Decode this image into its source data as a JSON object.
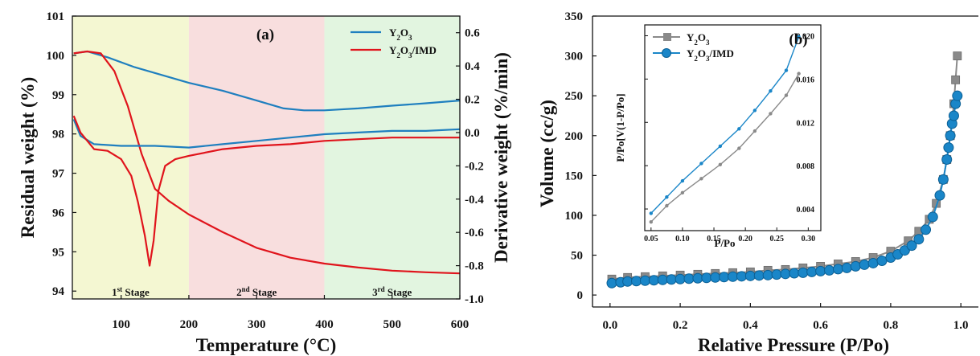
{
  "colors": {
    "y2o3_a": "#1f7fbf",
    "y2o3imd_a": "#e0141c",
    "stage1": "#f4f7d2",
    "stage2": "#f8dede",
    "stage3": "#e2f5e0",
    "y2o3_b": "#8a8a8a",
    "y2o3imd_b": "#1a86c8"
  },
  "chart_data": [
    {
      "type": "line",
      "panel_label": "(a)",
      "xlabel": "Temperature (°C)",
      "ylabel": "Residual weight (%)",
      "y2label": "Derivative weight (%/min)",
      "xlim": [
        28,
        600
      ],
      "ylim": [
        93.8,
        101
      ],
      "y2lim": [
        -1.0,
        0.7
      ],
      "x_ticks": [
        100,
        200,
        300,
        400,
        500,
        600
      ],
      "y_ticks": [
        94,
        95,
        96,
        97,
        98,
        99,
        100,
        101
      ],
      "y2_ticks": [
        -1.0,
        -0.8,
        -0.6,
        -0.4,
        -0.2,
        0.0,
        0.2,
        0.4,
        0.6
      ],
      "stages": [
        {
          "label_num": "1",
          "label_sup": "st",
          "label_text": " Stage",
          "from": 28,
          "to": 200
        },
        {
          "label_num": "2",
          "label_sup": "nd",
          "label_text": " Stage",
          "from": 200,
          "to": 400
        },
        {
          "label_num": "3",
          "label_sup": "rd",
          "label_text": " Stage",
          "from": 400,
          "to": 600
        }
      ],
      "legend": [
        {
          "label": "Y",
          "sub1": "2",
          "mid": "O",
          "sub2": "3",
          "suffix": ""
        },
        {
          "label": "Y",
          "sub1": "2",
          "mid": "O",
          "sub2": "3",
          "suffix": "/IMD"
        }
      ],
      "series": [
        {
          "axis": "left",
          "color_key": "y2o3_a",
          "x": [
            30,
            50,
            80,
            120,
            160,
            200,
            250,
            300,
            340,
            370,
            400,
            450,
            500,
            550,
            600
          ],
          "y": [
            100.05,
            100.1,
            99.95,
            99.7,
            99.5,
            99.3,
            99.1,
            98.85,
            98.65,
            98.6,
            98.6,
            98.65,
            98.72,
            98.78,
            98.85
          ]
        },
        {
          "axis": "left",
          "color_key": "y2o3imd_a",
          "x": [
            30,
            50,
            70,
            90,
            110,
            130,
            150,
            170,
            200,
            250,
            300,
            350,
            400,
            450,
            500,
            550,
            600
          ],
          "y": [
            100.05,
            100.1,
            100.05,
            99.6,
            98.7,
            97.5,
            96.6,
            96.3,
            95.95,
            95.5,
            95.1,
            94.85,
            94.7,
            94.6,
            94.52,
            94.48,
            94.45
          ]
        },
        {
          "axis": "right",
          "color_key": "y2o3_a",
          "x": [
            30,
            40,
            60,
            100,
            150,
            200,
            250,
            300,
            350,
            400,
            450,
            500,
            550,
            600
          ],
          "y": [
            0.08,
            -0.02,
            -0.07,
            -0.08,
            -0.08,
            -0.09,
            -0.07,
            -0.05,
            -0.03,
            -0.01,
            0.0,
            0.01,
            0.01,
            0.02
          ]
        },
        {
          "axis": "right",
          "color_key": "y2o3imd_a",
          "x": [
            30,
            40,
            60,
            80,
            100,
            115,
            125,
            135,
            142,
            148,
            155,
            165,
            180,
            200,
            250,
            300,
            350,
            400,
            450,
            500,
            550,
            600
          ],
          "y": [
            0.1,
            0.0,
            -0.1,
            -0.11,
            -0.16,
            -0.26,
            -0.42,
            -0.62,
            -0.8,
            -0.65,
            -0.35,
            -0.2,
            -0.16,
            -0.14,
            -0.1,
            -0.08,
            -0.07,
            -0.05,
            -0.04,
            -0.03,
            -0.03,
            -0.03
          ]
        }
      ]
    },
    {
      "type": "line",
      "panel_label": "(b)",
      "xlabel": "Relative Pressure (P/Po)",
      "ylabel": "Volume (cc/g)",
      "xlim": [
        -0.05,
        1.05
      ],
      "ylim": [
        -15,
        350
      ],
      "x_ticks": [
        0.0,
        0.2,
        0.4,
        0.6,
        0.8,
        1.0
      ],
      "y_ticks": [
        0,
        50,
        100,
        150,
        200,
        250,
        300,
        350
      ],
      "legend": [
        {
          "label": "Y",
          "sub1": "2",
          "mid": "O",
          "sub2": "3",
          "suffix": ""
        },
        {
          "label": "Y",
          "sub1": "2",
          "mid": "O",
          "sub2": "3",
          "suffix": "/IMD"
        }
      ],
      "series": [
        {
          "color_key": "y2o3_b",
          "x": [
            0.005,
            0.05,
            0.1,
            0.15,
            0.2,
            0.25,
            0.3,
            0.35,
            0.4,
            0.45,
            0.5,
            0.55,
            0.6,
            0.65,
            0.7,
            0.75,
            0.8,
            0.85,
            0.88,
            0.91,
            0.93,
            0.95,
            0.96,
            0.97,
            0.98,
            0.985,
            0.99
          ],
          "y": [
            20,
            22,
            23,
            24,
            25,
            26,
            27,
            28,
            29,
            31,
            32,
            34,
            36,
            39,
            42,
            47,
            55,
            68,
            80,
            95,
            115,
            145,
            170,
            200,
            240,
            270,
            300
          ]
        },
        {
          "color_key": "y2o3imd_b",
          "x": [
            0.005,
            0.03,
            0.05,
            0.075,
            0.1,
            0.125,
            0.15,
            0.175,
            0.2,
            0.225,
            0.25,
            0.275,
            0.3,
            0.325,
            0.35,
            0.375,
            0.4,
            0.425,
            0.45,
            0.475,
            0.5,
            0.525,
            0.55,
            0.575,
            0.6,
            0.625,
            0.65,
            0.675,
            0.7,
            0.725,
            0.75,
            0.775,
            0.8,
            0.82,
            0.84,
            0.86,
            0.88,
            0.9,
            0.92,
            0.94,
            0.95,
            0.96,
            0.965,
            0.97,
            0.975,
            0.98,
            0.985,
            0.99
          ],
          "y": [
            15,
            16,
            17,
            17.5,
            18,
            18.5,
            19,
            19.5,
            20,
            20.5,
            21,
            21.5,
            22,
            22.5,
            23,
            23.5,
            24,
            24.5,
            25,
            25.7,
            26.5,
            27.3,
            28,
            29,
            30,
            31,
            32.5,
            34,
            36,
            38,
            40,
            43,
            47,
            51,
            56,
            62,
            70,
            82,
            98,
            125,
            145,
            170,
            185,
            200,
            215,
            225,
            240,
            250
          ]
        }
      ],
      "inset": {
        "xlabel": "P/Po",
        "ylabel": "P/Po[V(1-P/Po]",
        "xlim": [
          0.04,
          0.32
        ],
        "ylim": [
          0.002,
          0.021
        ],
        "x_ticks": [
          0.05,
          0.1,
          0.15,
          0.2,
          0.25,
          0.3
        ],
        "y_ticks": [
          0.004,
          0.008,
          0.012,
          0.016,
          0.02
        ],
        "series": [
          {
            "color_key": "y2o3_b",
            "x": [
              0.05,
              0.075,
              0.1,
              0.13,
              0.16,
              0.19,
              0.215,
              0.24,
              0.265,
              0.285
            ],
            "y": [
              0.0028,
              0.0043,
              0.0055,
              0.0068,
              0.0081,
              0.0096,
              0.0112,
              0.0128,
              0.0145,
              0.0165
            ]
          },
          {
            "color_key": "y2o3imd_b",
            "x": [
              0.05,
              0.075,
              0.1,
              0.13,
              0.16,
              0.19,
              0.215,
              0.24,
              0.265,
              0.285
            ],
            "y": [
              0.0036,
              0.0051,
              0.0066,
              0.0082,
              0.0098,
              0.0114,
              0.0131,
              0.0149,
              0.0168,
              0.0199
            ]
          }
        ]
      }
    }
  ]
}
